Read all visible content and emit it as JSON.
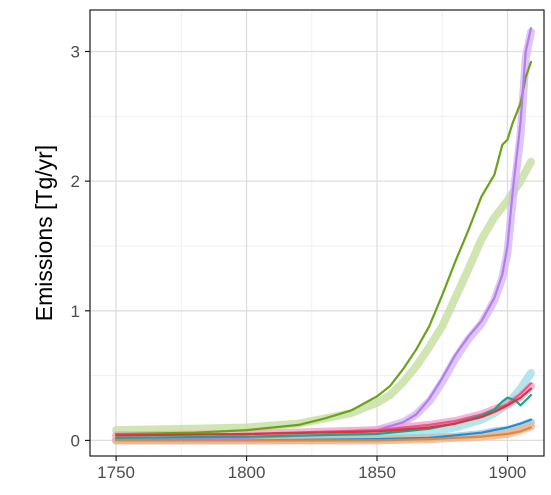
{
  "chart_data": {
    "type": "line",
    "title": "",
    "xlabel": "",
    "ylabel": "Emissions [Tg/yr]",
    "xlim": [
      1740,
      1914
    ],
    "ylim": [
      -0.12,
      3.32
    ],
    "xticks": [
      1750,
      1800,
      1850,
      1900
    ],
    "yticks": [
      0,
      1,
      2,
      3
    ],
    "grid": true,
    "legend": "none",
    "series": [
      {
        "color": "#c5dfa0",
        "style": "band",
        "x": [
          1750,
          1780,
          1800,
          1820,
          1830,
          1840,
          1850,
          1855,
          1860,
          1865,
          1870,
          1875,
          1880,
          1885,
          1890,
          1895,
          1900,
          1905,
          1909
        ],
        "y": [
          0.08,
          0.09,
          0.1,
          0.13,
          0.17,
          0.21,
          0.29,
          0.35,
          0.45,
          0.57,
          0.72,
          0.88,
          1.1,
          1.32,
          1.55,
          1.72,
          1.85,
          2.0,
          2.15
        ]
      },
      {
        "color": "#6aa31b",
        "style": "line",
        "x": [
          1750,
          1780,
          1800,
          1820,
          1830,
          1840,
          1850,
          1855,
          1860,
          1865,
          1870,
          1875,
          1880,
          1885,
          1890,
          1895,
          1898,
          1900,
          1902,
          1905,
          1907,
          1909
        ],
        "y": [
          0.05,
          0.06,
          0.08,
          0.12,
          0.17,
          0.23,
          0.34,
          0.42,
          0.55,
          0.7,
          0.88,
          1.12,
          1.38,
          1.62,
          1.88,
          2.05,
          2.28,
          2.32,
          2.45,
          2.6,
          2.8,
          2.92
        ]
      },
      {
        "color": "#d6b8f5",
        "style": "band",
        "x": [
          1750,
          1800,
          1840,
          1850,
          1860,
          1865,
          1870,
          1875,
          1880,
          1885,
          1890,
          1895,
          1898,
          1900,
          1902,
          1905,
          1907,
          1909
        ],
        "y": [
          0.01,
          0.02,
          0.05,
          0.08,
          0.14,
          0.2,
          0.3,
          0.45,
          0.63,
          0.78,
          0.9,
          1.08,
          1.25,
          1.45,
          1.85,
          2.35,
          2.95,
          3.15
        ]
      },
      {
        "color": "#b57cf0",
        "style": "line",
        "x": [
          1750,
          1800,
          1840,
          1850,
          1860,
          1865,
          1870,
          1875,
          1880,
          1885,
          1890,
          1895,
          1898,
          1900,
          1902,
          1905,
          1907,
          1909
        ],
        "y": [
          0.01,
          0.02,
          0.05,
          0.08,
          0.14,
          0.2,
          0.32,
          0.48,
          0.66,
          0.8,
          0.92,
          1.1,
          1.28,
          1.5,
          1.92,
          2.45,
          3.0,
          3.18
        ]
      },
      {
        "color": "#9fe0e5",
        "style": "band",
        "x": [
          1750,
          1800,
          1850,
          1870,
          1880,
          1890,
          1895,
          1900,
          1905,
          1909
        ],
        "y": [
          0.0,
          0.01,
          0.03,
          0.07,
          0.1,
          0.16,
          0.21,
          0.28,
          0.4,
          0.52
        ]
      },
      {
        "color": "#f4a3c8",
        "style": "band",
        "x": [
          1750,
          1800,
          1850,
          1870,
          1880,
          1890,
          1895,
          1900,
          1905,
          1909
        ],
        "y": [
          0.04,
          0.05,
          0.08,
          0.12,
          0.15,
          0.2,
          0.24,
          0.28,
          0.34,
          0.42
        ]
      },
      {
        "color": "#e8558f",
        "style": "line",
        "x": [
          1750,
          1800,
          1850,
          1870,
          1880,
          1890,
          1895,
          1900,
          1905,
          1909
        ],
        "y": [
          0.04,
          0.05,
          0.08,
          0.12,
          0.15,
          0.2,
          0.24,
          0.28,
          0.36,
          0.44
        ]
      },
      {
        "color": "#17a88a",
        "style": "line",
        "x": [
          1750,
          1800,
          1850,
          1870,
          1880,
          1890,
          1895,
          1898,
          1900,
          1903,
          1905,
          1909
        ],
        "y": [
          0.02,
          0.03,
          0.05,
          0.09,
          0.13,
          0.19,
          0.24,
          0.3,
          0.33,
          0.31,
          0.27,
          0.35
        ]
      },
      {
        "color": "#d43a3a",
        "style": "line",
        "x": [
          1750,
          1800,
          1850,
          1870,
          1880,
          1890,
          1895,
          1900,
          1905,
          1909
        ],
        "y": [
          0.04,
          0.05,
          0.07,
          0.1,
          0.13,
          0.18,
          0.22,
          0.27,
          0.33,
          0.4
        ]
      },
      {
        "color": "#9ac9ea",
        "style": "band",
        "x": [
          1750,
          1800,
          1850,
          1870,
          1880,
          1890,
          1895,
          1900,
          1905,
          1909
        ],
        "y": [
          0.0,
          0.0,
          0.01,
          0.02,
          0.03,
          0.05,
          0.07,
          0.08,
          0.11,
          0.14
        ]
      },
      {
        "color": "#1f8fd6",
        "style": "line",
        "x": [
          1750,
          1800,
          1850,
          1870,
          1880,
          1890,
          1895,
          1900,
          1905,
          1909
        ],
        "y": [
          0.0,
          0.0,
          0.01,
          0.02,
          0.04,
          0.06,
          0.08,
          0.1,
          0.13,
          0.16
        ]
      },
      {
        "color": "#f2b48a",
        "style": "band",
        "x": [
          1750,
          1800,
          1850,
          1870,
          1880,
          1890,
          1895,
          1900,
          1905,
          1909
        ],
        "y": [
          0.0,
          0.0,
          0.0,
          0.01,
          0.02,
          0.03,
          0.04,
          0.05,
          0.08,
          0.11
        ]
      },
      {
        "color": "#e0893a",
        "style": "line",
        "x": [
          1750,
          1800,
          1850,
          1870,
          1880,
          1890,
          1895,
          1900,
          1905,
          1909
        ],
        "y": [
          0.0,
          0.0,
          0.0,
          0.01,
          0.02,
          0.03,
          0.04,
          0.05,
          0.07,
          0.1
        ]
      }
    ]
  }
}
